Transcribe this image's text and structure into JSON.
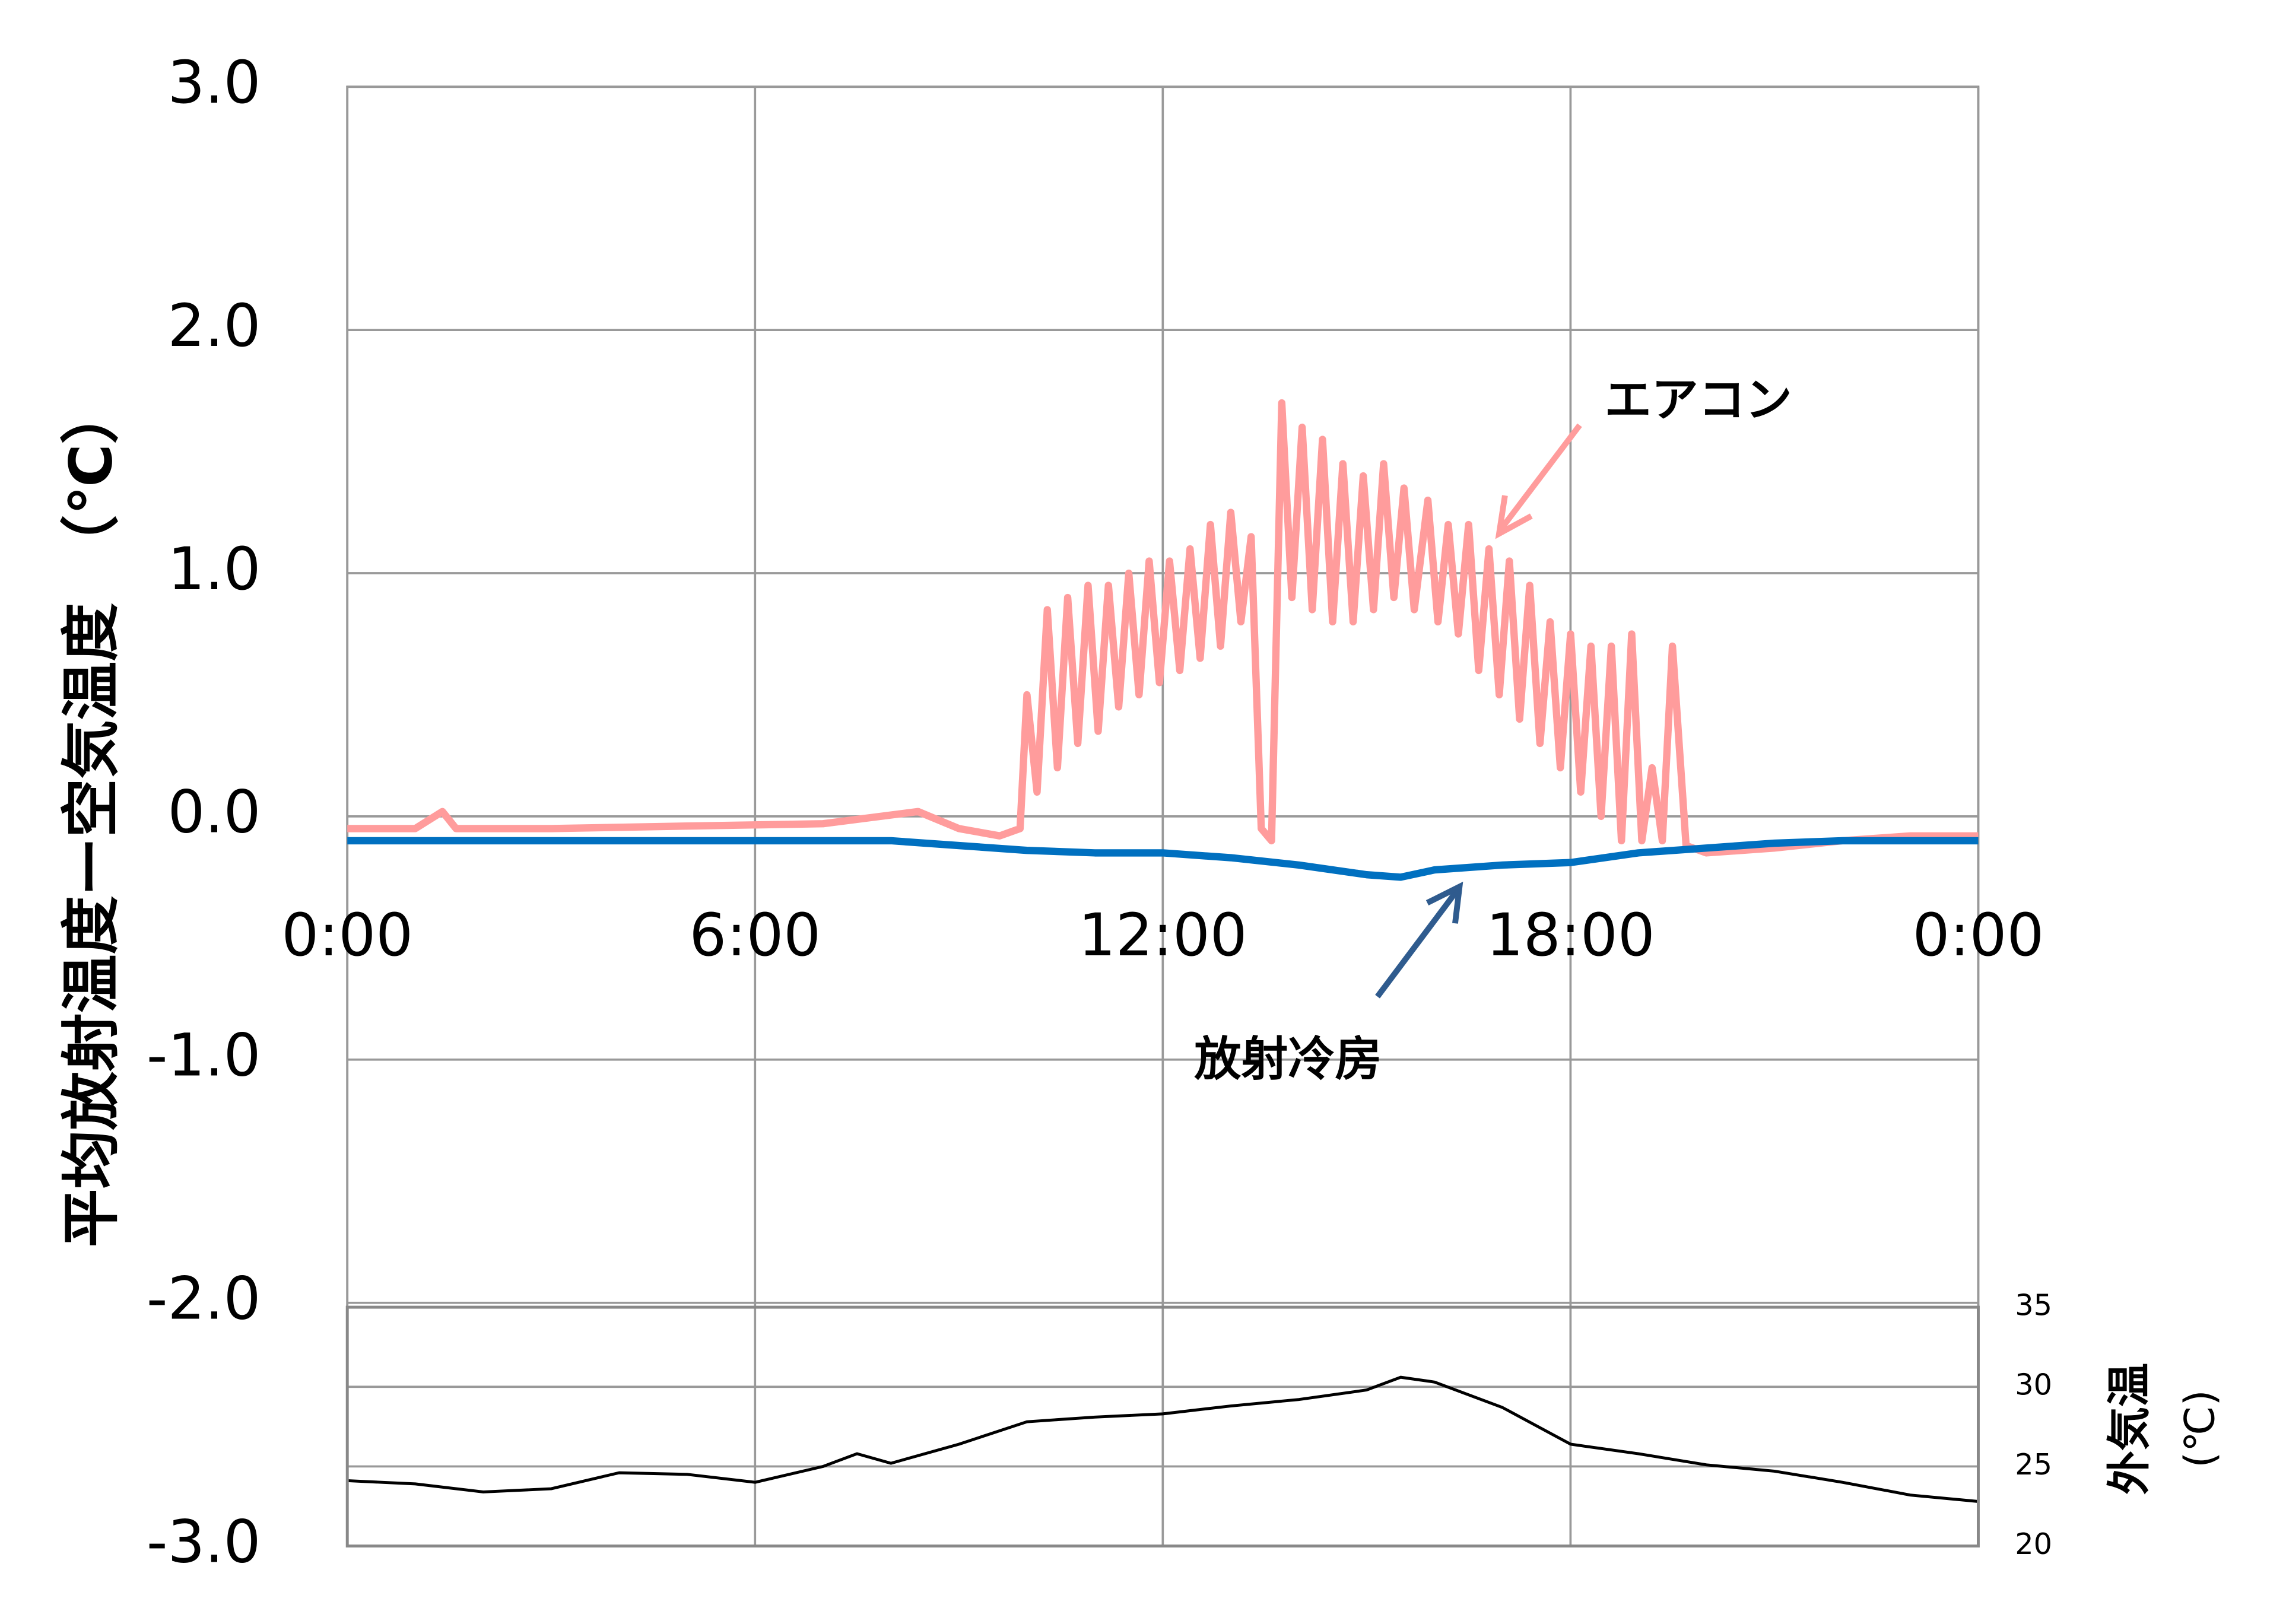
{
  "chart_data": [
    {
      "type": "line",
      "ylabel": "平均放射温度ー空気温度　（℃）",
      "xlim": [
        0,
        24
      ],
      "xticks": [
        {
          "value": 0,
          "label": "0:00"
        },
        {
          "value": 6,
          "label": "6:00"
        },
        {
          "value": 12,
          "label": "12:00"
        },
        {
          "value": 18,
          "label": "18:00"
        },
        {
          "value": 24,
          "label": "0:00"
        }
      ],
      "ylim": [
        -3,
        3
      ],
      "yticks": [
        {
          "value": -3,
          "label": "-3.0"
        },
        {
          "value": -2,
          "label": "-2.0"
        },
        {
          "value": -1,
          "label": "-1.0"
        },
        {
          "value": 0,
          "label": "0.0"
        },
        {
          "value": 1,
          "label": "1.0"
        },
        {
          "value": 2,
          "label": "2.0"
        },
        {
          "value": 3,
          "label": "3.0"
        }
      ],
      "grid": true,
      "series": [
        {
          "name": "エアコン",
          "color": "#ff9c9c",
          "x": [
            0,
            1,
            1.4,
            1.6,
            3,
            5,
            7,
            8.4,
            9,
            9.6,
            9.9,
            10.0,
            10.15,
            10.3,
            10.45,
            10.6,
            10.75,
            10.9,
            11.05,
            11.2,
            11.35,
            11.5,
            11.65,
            11.8,
            11.95,
            12.1,
            12.25,
            12.4,
            12.55,
            12.7,
            12.85,
            13.0,
            13.15,
            13.3,
            13.45,
            13.6,
            13.75,
            13.9,
            14.05,
            14.2,
            14.35,
            14.5,
            14.65,
            14.8,
            14.95,
            15.1,
            15.25,
            15.4,
            15.55,
            15.7,
            15.9,
            16.05,
            16.2,
            16.35,
            16.5,
            16.65,
            16.8,
            16.95,
            17.1,
            17.25,
            17.4,
            17.55,
            17.7,
            17.85,
            18.0,
            18.15,
            18.3,
            18.45,
            18.6,
            18.75,
            18.9,
            19.05,
            19.2,
            19.35,
            19.5,
            19.7,
            20,
            21,
            22,
            23,
            24
          ],
          "values": [
            -0.05,
            -0.05,
            0.02,
            -0.05,
            -0.05,
            -0.04,
            -0.03,
            0.02,
            -0.05,
            -0.08,
            -0.05,
            0.5,
            0.1,
            0.85,
            0.2,
            0.9,
            0.3,
            0.95,
            0.35,
            0.95,
            0.45,
            1.0,
            0.5,
            1.05,
            0.55,
            1.05,
            0.6,
            1.1,
            0.65,
            1.2,
            0.7,
            1.25,
            0.8,
            1.15,
            -0.05,
            -0.1,
            1.7,
            0.9,
            1.6,
            0.85,
            1.55,
            0.8,
            1.45,
            0.8,
            1.4,
            0.85,
            1.45,
            0.9,
            1.35,
            0.85,
            1.3,
            0.8,
            1.2,
            0.75,
            1.2,
            0.6,
            1.1,
            0.5,
            1.05,
            0.4,
            0.95,
            0.3,
            0.8,
            0.2,
            0.75,
            0.1,
            0.7,
            0.0,
            0.7,
            -0.1,
            0.75,
            -0.1,
            0.2,
            -0.1,
            0.7,
            -0.12,
            -0.15,
            -0.13,
            -0.1,
            -0.08,
            -0.08
          ]
        },
        {
          "name": "放射冷房",
          "color": "#0070c0",
          "x": [
            0,
            1,
            2,
            3,
            4,
            5,
            6,
            7,
            8,
            9,
            10,
            11,
            12,
            13,
            14,
            15,
            15.5,
            16,
            17,
            18,
            19,
            20,
            21,
            22,
            23,
            24
          ],
          "values": [
            -0.1,
            -0.1,
            -0.1,
            -0.1,
            -0.1,
            -0.1,
            -0.1,
            -0.1,
            -0.1,
            -0.12,
            -0.14,
            -0.15,
            -0.15,
            -0.17,
            -0.2,
            -0.24,
            -0.25,
            -0.22,
            -0.2,
            -0.19,
            -0.15,
            -0.13,
            -0.11,
            -0.1,
            -0.1,
            -0.1
          ]
        }
      ]
    },
    {
      "type": "line",
      "ylabel": "外気温",
      "ylabel_unit": "(℃)",
      "xlim": [
        0,
        24
      ],
      "ylim": [
        20,
        35
      ],
      "yticks": [
        20,
        25,
        30,
        35
      ],
      "grid": true,
      "color": "#000000",
      "x": [
        0,
        1,
        2,
        3,
        4,
        5,
        6,
        7,
        7.5,
        8,
        9,
        10,
        11,
        12,
        13,
        14,
        15,
        15.5,
        16,
        17,
        18,
        19,
        20,
        21,
        22,
        23,
        24
      ],
      "values": [
        24.1,
        23.9,
        23.4,
        23.6,
        24.6,
        24.5,
        24.0,
        25.0,
        25.8,
        25.2,
        26.4,
        27.8,
        28.1,
        28.3,
        28.8,
        29.2,
        29.8,
        30.6,
        30.3,
        28.7,
        26.4,
        25.8,
        25.1,
        24.7,
        24.0,
        23.2,
        22.8
      ]
    }
  ]
}
